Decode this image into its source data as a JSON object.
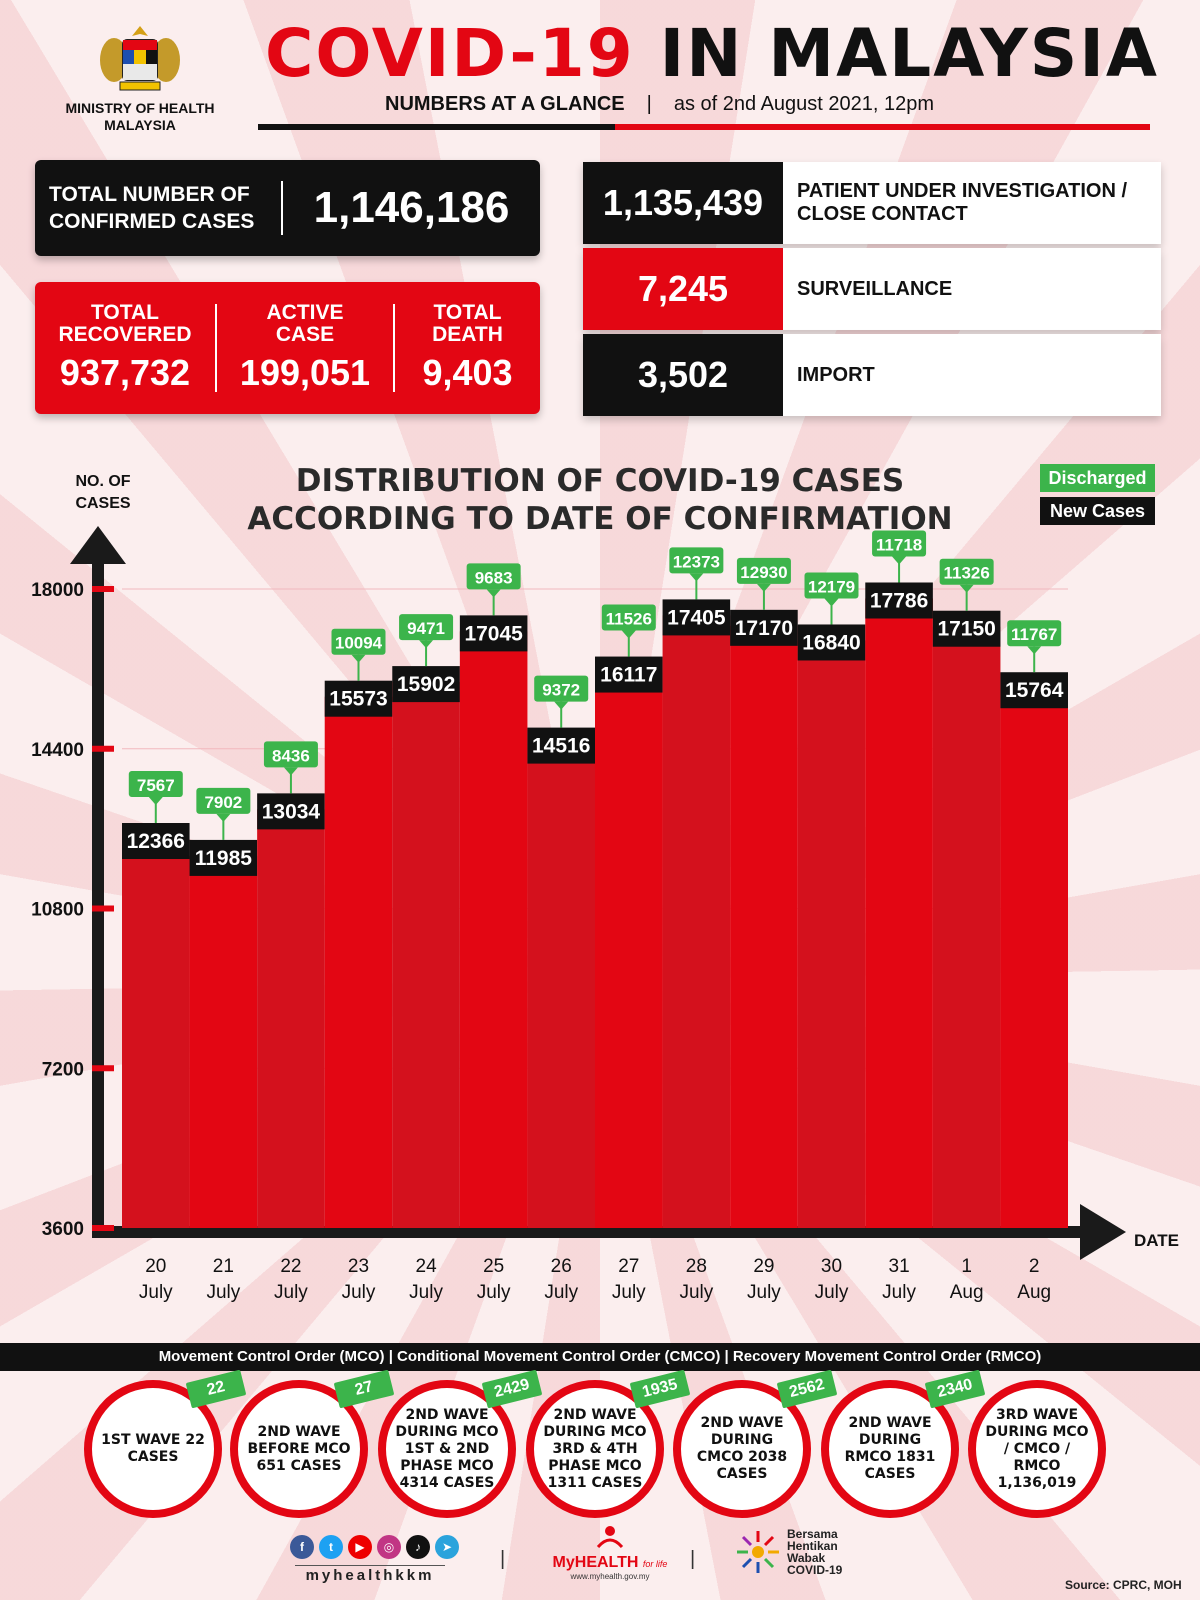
{
  "header": {
    "ministry": "MINISTRY OF HEALTH MALAYSIA",
    "title_red": "COVID-19",
    "title_black": "IN MALAYSIA",
    "subtitle": "NUMBERS AT A GLANCE",
    "separator": "|",
    "as_of": "as of 2nd August 2021, 12pm"
  },
  "stats": {
    "confirmed_label": "TOTAL NUMBER OF CONFIRMED CASES",
    "confirmed_value": "1,146,186",
    "recovered_label": "TOTAL RECOVERED",
    "recovered_value": "937,732",
    "active_label": "ACTIVE CASE",
    "active_value": "199,051",
    "death_label": "TOTAL DEATH",
    "death_value": "9,403"
  },
  "categories": [
    {
      "value": "1,135,439",
      "label": "PATIENT UNDER INVESTIGATION / CLOSE CONTACT",
      "color": "#111111"
    },
    {
      "value": "7,245",
      "label": "SURVEILLANCE",
      "color": "#e30613"
    },
    {
      "value": "3,502",
      "label": "IMPORT",
      "color": "#111111"
    }
  ],
  "legend": {
    "discharged": "Discharged",
    "new_cases": "New Cases"
  },
  "chart_data": {
    "type": "bar",
    "title": "DISTRIBUTION OF COVID-19 CASES ACCORDING TO DATE OF CONFIRMATION",
    "ylabel": "NO. OF CASES",
    "xlabel": "DATE",
    "ylim": [
      3600,
      18000
    ],
    "yticks": [
      3600,
      7200,
      10800,
      14400,
      18000
    ],
    "categories": [
      [
        "20",
        "July"
      ],
      [
        "21",
        "July"
      ],
      [
        "22",
        "July"
      ],
      [
        "23",
        "July"
      ],
      [
        "24",
        "July"
      ],
      [
        "25",
        "July"
      ],
      [
        "26",
        "July"
      ],
      [
        "27",
        "July"
      ],
      [
        "28",
        "July"
      ],
      [
        "29",
        "July"
      ],
      [
        "30",
        "July"
      ],
      [
        "31",
        "July"
      ],
      [
        "1",
        "Aug"
      ],
      [
        "2",
        "Aug"
      ]
    ],
    "series": [
      {
        "name": "New Cases",
        "values": [
          12366,
          11985,
          13034,
          15573,
          15902,
          17045,
          14516,
          16117,
          17405,
          17170,
          16840,
          17786,
          17150,
          15764
        ]
      },
      {
        "name": "Discharged",
        "values": [
          7567,
          7902,
          8436,
          10094,
          9471,
          9683,
          9372,
          11526,
          12373,
          12930,
          12179,
          11718,
          11326,
          11767
        ]
      }
    ],
    "colors": {
      "bar": "#e30613",
      "new_label": "#111111",
      "discharged_label": "#3cb44b"
    }
  },
  "mco": {
    "strip": "Movement Control Order (MCO) | Conditional Movement Control Order (CMCO) | Recovery Movement Control Order (RMCO)",
    "waves": [
      {
        "text": "1ST WAVE 22 CASES",
        "badge": "22"
      },
      {
        "text": "2ND WAVE BEFORE MCO 651 CASES",
        "badge": "27"
      },
      {
        "text": "2ND WAVE DURING MCO 1ST & 2ND PHASE MCO 4314 CASES",
        "badge": "2429"
      },
      {
        "text": "2ND WAVE DURING MCO 3RD & 4TH PHASE MCO 1311 CASES",
        "badge": "1935"
      },
      {
        "text": "2ND WAVE DURING CMCO 2038 CASES",
        "badge": "2562"
      },
      {
        "text": "2ND WAVE DURING RMCO 1831 CASES",
        "badge": "2340"
      },
      {
        "text": "3RD WAVE DURING MCO / CMCO / RMCO 1,136,019",
        "badge": ""
      }
    ]
  },
  "footer": {
    "handle": "myhealthkkm",
    "myhealth": "MyHEALTH",
    "myhealth_tag": "for life",
    "myhealth_url": "www.myhealth.gov.my",
    "bersama": [
      "Bersama",
      "Hentikan",
      "Wabak",
      "COVID-19"
    ],
    "source": "Source: CPRC, MOH",
    "social_icons": [
      "facebook-icon",
      "twitter-icon",
      "youtube-icon",
      "instagram-icon",
      "tiktok-icon",
      "telegram-icon"
    ]
  }
}
